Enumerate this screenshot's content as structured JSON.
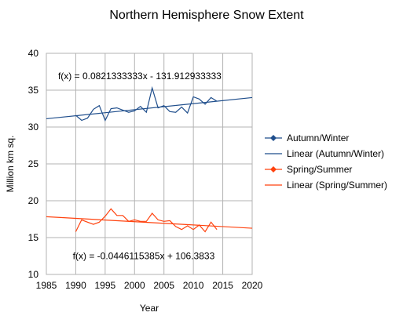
{
  "chart_data": {
    "type": "line",
    "title": "Northern Hemisphere Snow Extent",
    "xlabel": "Year",
    "ylabel": "Million km sq.",
    "xlim": [
      1985,
      2020
    ],
    "ylim": [
      10,
      40
    ],
    "xticks": [
      1985,
      1990,
      1995,
      2000,
      2005,
      2010,
      2015,
      2020
    ],
    "yticks": [
      10,
      15,
      20,
      25,
      30,
      35,
      40
    ],
    "grid": "vertical and horizontal",
    "legend_position": "right",
    "series": [
      {
        "name": "Autumn/Winter",
        "color": "#1f4e8c",
        "marker": "diamond",
        "points": [
          [
            1990,
            31.6
          ],
          [
            1991,
            30.9
          ],
          [
            1992,
            31.2
          ],
          [
            1993,
            32.4
          ],
          [
            1994,
            32.9
          ],
          [
            1995,
            30.9
          ],
          [
            1996,
            32.5
          ],
          [
            1997,
            32.6
          ],
          [
            1998,
            32.3
          ],
          [
            1999,
            32.0
          ],
          [
            2000,
            32.2
          ],
          [
            2001,
            32.8
          ],
          [
            2002,
            32.0
          ],
          [
            2003,
            35.3
          ],
          [
            2004,
            32.6
          ],
          [
            2005,
            32.9
          ],
          [
            2006,
            32.1
          ],
          [
            2007,
            32.0
          ],
          [
            2008,
            32.7
          ],
          [
            2009,
            31.9
          ],
          [
            2010,
            34.1
          ],
          [
            2011,
            33.8
          ],
          [
            2012,
            33.1
          ],
          [
            2013,
            34.0
          ],
          [
            2014,
            33.5
          ]
        ]
      },
      {
        "name": "Linear (Autumn/Winter)",
        "color": "#1f4e8c",
        "marker": "none",
        "trendline": {
          "slope": 0.0821333333,
          "intercept": -131.912933333
        }
      },
      {
        "name": "Spring/Summer",
        "color": "#ff420e",
        "marker": "diamond",
        "points": [
          [
            1990,
            15.8
          ],
          [
            1991,
            17.4
          ],
          [
            1992,
            17.1
          ],
          [
            1993,
            16.8
          ],
          [
            1994,
            17.1
          ],
          [
            1995,
            17.9
          ],
          [
            1996,
            18.9
          ],
          [
            1997,
            18.0
          ],
          [
            1998,
            18.0
          ],
          [
            1999,
            17.2
          ],
          [
            2000,
            17.4
          ],
          [
            2001,
            17.2
          ],
          [
            2002,
            17.2
          ],
          [
            2003,
            18.3
          ],
          [
            2004,
            17.4
          ],
          [
            2005,
            17.2
          ],
          [
            2006,
            17.3
          ],
          [
            2007,
            16.5
          ],
          [
            2008,
            16.1
          ],
          [
            2009,
            16.6
          ],
          [
            2010,
            16.1
          ],
          [
            2011,
            16.7
          ],
          [
            2012,
            15.8
          ],
          [
            2013,
            17.1
          ],
          [
            2014,
            16.1
          ]
        ]
      },
      {
        "name": "Linear (Spring/Summer)",
        "color": "#ff420e",
        "marker": "none",
        "trendline": {
          "slope": -0.0446115385,
          "intercept": 106.3833
        }
      }
    ],
    "annotations": [
      {
        "text": "f(x) = 0.0821333333x - 131.912933333",
        "x": 1987,
        "y": 36.9
      },
      {
        "text": "f(x) = -0.0446115385x + 106.3833",
        "x": 1989.5,
        "y": 12.5
      }
    ]
  }
}
